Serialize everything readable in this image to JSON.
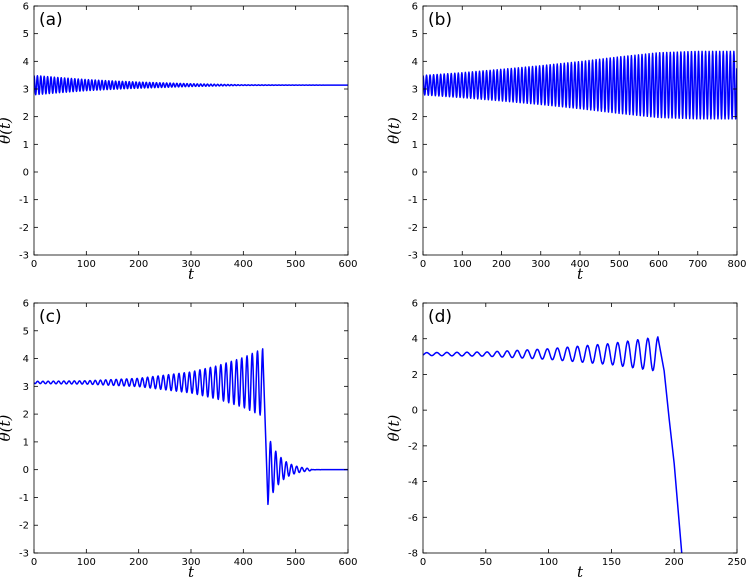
{
  "chart_data": [
    {
      "type": "line",
      "panel_label": "(a)",
      "xlabel": "t",
      "ylabel": "θ(t)",
      "xlim": [
        0,
        600
      ],
      "ylim": [
        -3,
        6
      ],
      "xticks": [
        0,
        100,
        200,
        300,
        400,
        500,
        600
      ],
      "yticks": [
        -3,
        -2,
        -1,
        0,
        1,
        2,
        3,
        4,
        5,
        6
      ],
      "series": [
        {
          "color": "#0000ff",
          "description_of_shape": "decaying oscillation about 3.14",
          "mean": 3.14,
          "envelope_t": [
            0,
            50,
            100,
            150,
            200,
            250,
            300,
            350,
            400,
            600
          ],
          "envelope_amplitude": [
            0.35,
            0.27,
            0.2,
            0.15,
            0.11,
            0.08,
            0.05,
            0.03,
            0.01,
            0.0
          ],
          "period": 6.5
        }
      ]
    },
    {
      "type": "line",
      "panel_label": "(b)",
      "xlabel": "t",
      "ylabel": "θ(t)",
      "xlim": [
        0,
        800
      ],
      "ylim": [
        -3,
        6
      ],
      "xticks": [
        0,
        100,
        200,
        300,
        400,
        500,
        600,
        700,
        800
      ],
      "yticks": [
        -3,
        -2,
        -1,
        0,
        1,
        2,
        3,
        4,
        5,
        6
      ],
      "series": [
        {
          "color": "#0000ff",
          "mean": 3.14,
          "envelope_t": [
            0,
            100,
            200,
            300,
            400,
            500,
            600,
            700,
            800
          ],
          "envelope_amplitude": [
            0.35,
            0.45,
            0.57,
            0.7,
            0.85,
            1.02,
            1.17,
            1.22,
            1.22
          ],
          "period": 9
        }
      ]
    },
    {
      "type": "line",
      "panel_label": "(c)",
      "xlabel": "t",
      "ylabel": "θ(t)",
      "xlim": [
        0,
        600
      ],
      "ylim": [
        -3,
        6
      ],
      "xticks": [
        0,
        100,
        200,
        300,
        400,
        500,
        600
      ],
      "yticks": [
        -3,
        -2,
        -1,
        0,
        1,
        2,
        3,
        4,
        5,
        6
      ],
      "series": [
        {
          "color": "#0000ff",
          "mean_before": 3.14,
          "growth_t": [
            0,
            100,
            200,
            300,
            350,
            400,
            437
          ],
          "growth_amplitude": [
            0.04,
            0.06,
            0.15,
            0.38,
            0.6,
            0.9,
            1.22
          ],
          "period": 10,
          "transition_t": [
            437,
            447
          ],
          "transition_value": [
            4.35,
            -1.25
          ],
          "decay_mean": 0,
          "decay_amplitude_start": 1.25,
          "decay_t_end": 530
        }
      ]
    },
    {
      "type": "line",
      "panel_label": "(d)",
      "xlabel": "t",
      "ylabel": "θ(t)",
      "xlim": [
        0,
        250
      ],
      "ylim": [
        -8,
        6
      ],
      "xticks": [
        0,
        50,
        100,
        150,
        200,
        250
      ],
      "yticks": [
        -8,
        -6,
        -4,
        -2,
        0,
        2,
        4,
        6
      ],
      "series": [
        {
          "color": "#0000ff",
          "mean": 3.14,
          "growth_t": [
            0,
            50,
            100,
            150,
            185
          ],
          "growth_amplitude": [
            0.08,
            0.12,
            0.3,
            0.6,
            0.95
          ],
          "period": 8,
          "fall_t": [
            187,
            192,
            196,
            200,
            206
          ],
          "fall_value": [
            4.1,
            2.2,
            -0.5,
            -3.0,
            -8.0
          ]
        }
      ]
    }
  ]
}
